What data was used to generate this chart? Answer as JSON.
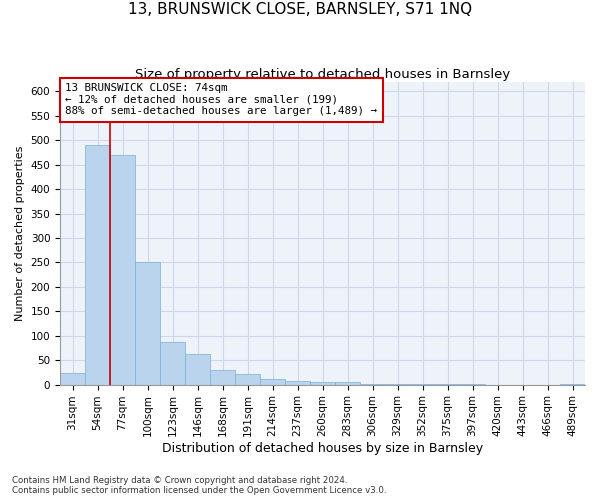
{
  "title1": "13, BRUNSWICK CLOSE, BARNSLEY, S71 1NQ",
  "title2": "Size of property relative to detached houses in Barnsley",
  "xlabel": "Distribution of detached houses by size in Barnsley",
  "ylabel": "Number of detached properties",
  "footnote1": "Contains HM Land Registry data © Crown copyright and database right 2024.",
  "footnote2": "Contains public sector information licensed under the Open Government Licence v3.0.",
  "annotation_line1": "13 BRUNSWICK CLOSE: 74sqm",
  "annotation_line2": "← 12% of detached houses are smaller (199)",
  "annotation_line3": "88% of semi-detached houses are larger (1,489) →",
  "bar_color": "#bad4ee",
  "bar_edge_color": "#7aafd4",
  "vline_color": "#cc0000",
  "annotation_box_color": "#cc0000",
  "grid_color": "#ccd8ea",
  "background_color": "#eef3fa",
  "categories": [
    "31sqm",
    "54sqm",
    "77sqm",
    "100sqm",
    "123sqm",
    "146sqm",
    "168sqm",
    "191sqm",
    "214sqm",
    "237sqm",
    "260sqm",
    "283sqm",
    "306sqm",
    "329sqm",
    "352sqm",
    "375sqm",
    "397sqm",
    "420sqm",
    "443sqm",
    "466sqm",
    "489sqm"
  ],
  "values": [
    24,
    490,
    470,
    250,
    88,
    62,
    30,
    21,
    11,
    7,
    5,
    5,
    2,
    2,
    2,
    1,
    1,
    0,
    0,
    0,
    2
  ],
  "vline_position": 1.5,
  "ylim": [
    0,
    620
  ],
  "yticks": [
    0,
    50,
    100,
    150,
    200,
    250,
    300,
    350,
    400,
    450,
    500,
    550,
    600
  ],
  "title1_fontsize": 11,
  "title2_fontsize": 9.5,
  "xlabel_fontsize": 9,
  "ylabel_fontsize": 8,
  "tick_fontsize": 7.5,
  "annotation_fontsize": 7.8,
  "footnote_fontsize": 6.2
}
